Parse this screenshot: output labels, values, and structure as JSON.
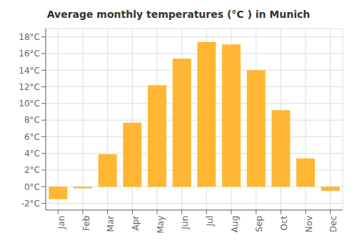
{
  "chart_data": {
    "type": "bar",
    "title": "Average monthly temperatures (°C ) in Munich",
    "categories": [
      "Jan",
      "Feb",
      "Mar",
      "Apr",
      "May",
      "Jun",
      "Jul",
      "Aug",
      "Sep",
      "Oct",
      "Nov",
      "Dec"
    ],
    "values": [
      -1.5,
      -0.2,
      3.9,
      7.7,
      12.2,
      15.4,
      17.4,
      17.1,
      14.0,
      9.2,
      3.4,
      -0.5
    ],
    "color": "#FFB733",
    "ylim": [
      -2.8,
      19
    ],
    "yticks": [
      {
        "value": -2,
        "label": "-2°C"
      },
      {
        "value": 0,
        "label": "0°C"
      },
      {
        "value": 2,
        "label": "2°C"
      },
      {
        "value": 4,
        "label": "4°C"
      },
      {
        "value": 6,
        "label": "6°C"
      },
      {
        "value": 8,
        "label": "8°C"
      },
      {
        "value": 10,
        "label": "10°C"
      },
      {
        "value": 12,
        "label": "12°C"
      },
      {
        "value": 14,
        "label": "14°C"
      },
      {
        "value": 16,
        "label": "16°C"
      },
      {
        "value": 18,
        "label": "18°C"
      }
    ],
    "grid": true
  }
}
